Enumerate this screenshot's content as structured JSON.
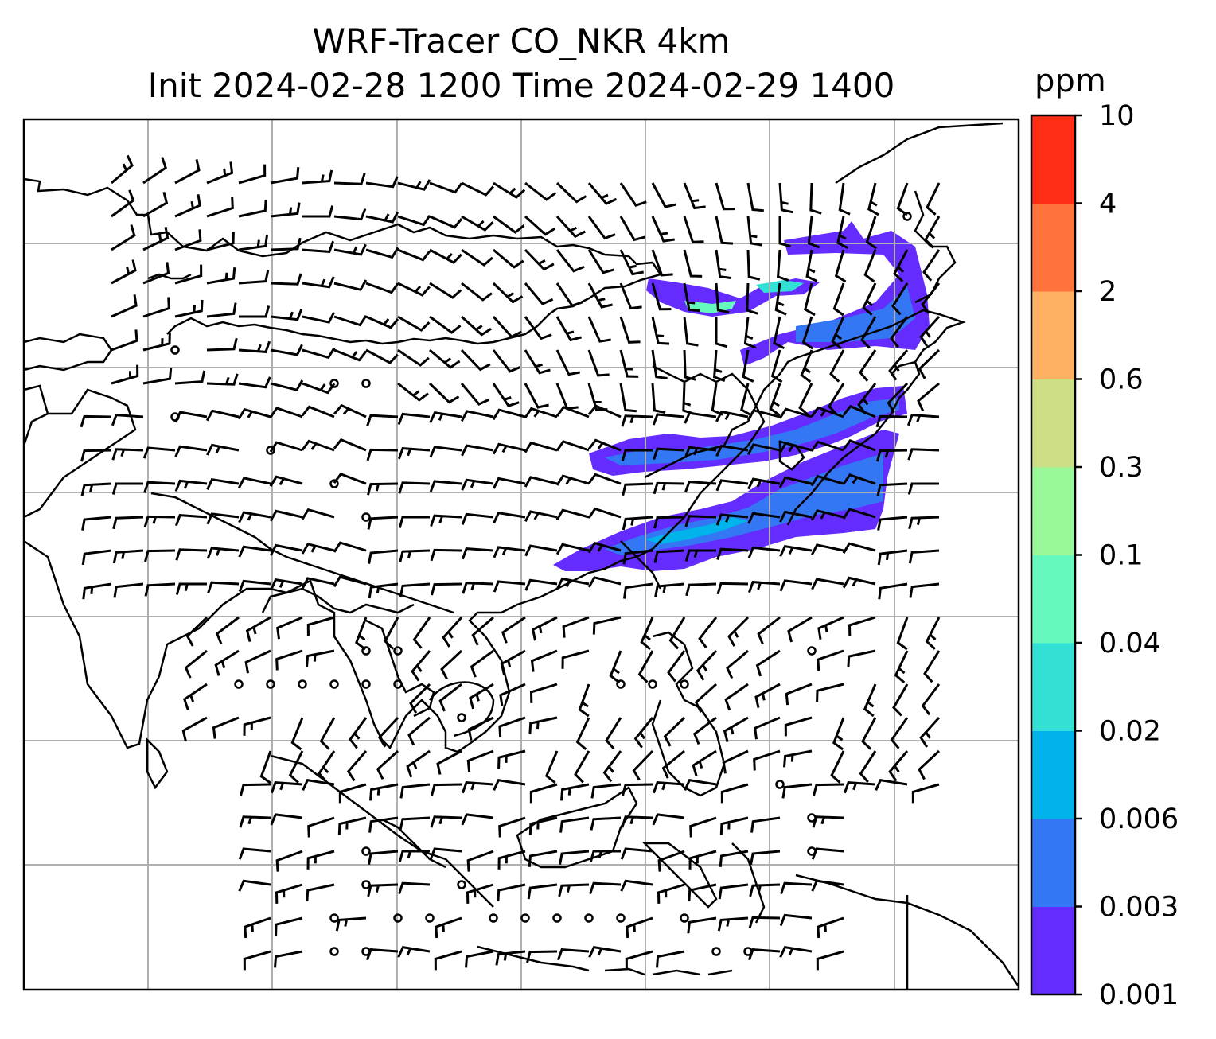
{
  "title": {
    "line1": "WRF-Tracer CO_NKR 4km",
    "line2": "Init 2024-02-28 1200 Time 2024-02-29 1400"
  },
  "colorbar": {
    "unit": "ppm",
    "levels": [
      "0.001",
      "0.003",
      "0.006",
      "0.02",
      "0.04",
      "0.1",
      "0.3",
      "0.6",
      "2",
      "4",
      "10"
    ],
    "colors": [
      "#652cff",
      "#3377f5",
      "#00b3ea",
      "#33e0d6",
      "#66f9be",
      "#99f899",
      "#ccdf86",
      "#ffb063",
      "#ff723c",
      "#ff2c16"
    ]
  },
  "map": {
    "gridlines": true,
    "grid_color": "#b0b0b0",
    "coastline_color": "#000000",
    "barb_color": "#000000",
    "calm_marker": "circle"
  }
}
